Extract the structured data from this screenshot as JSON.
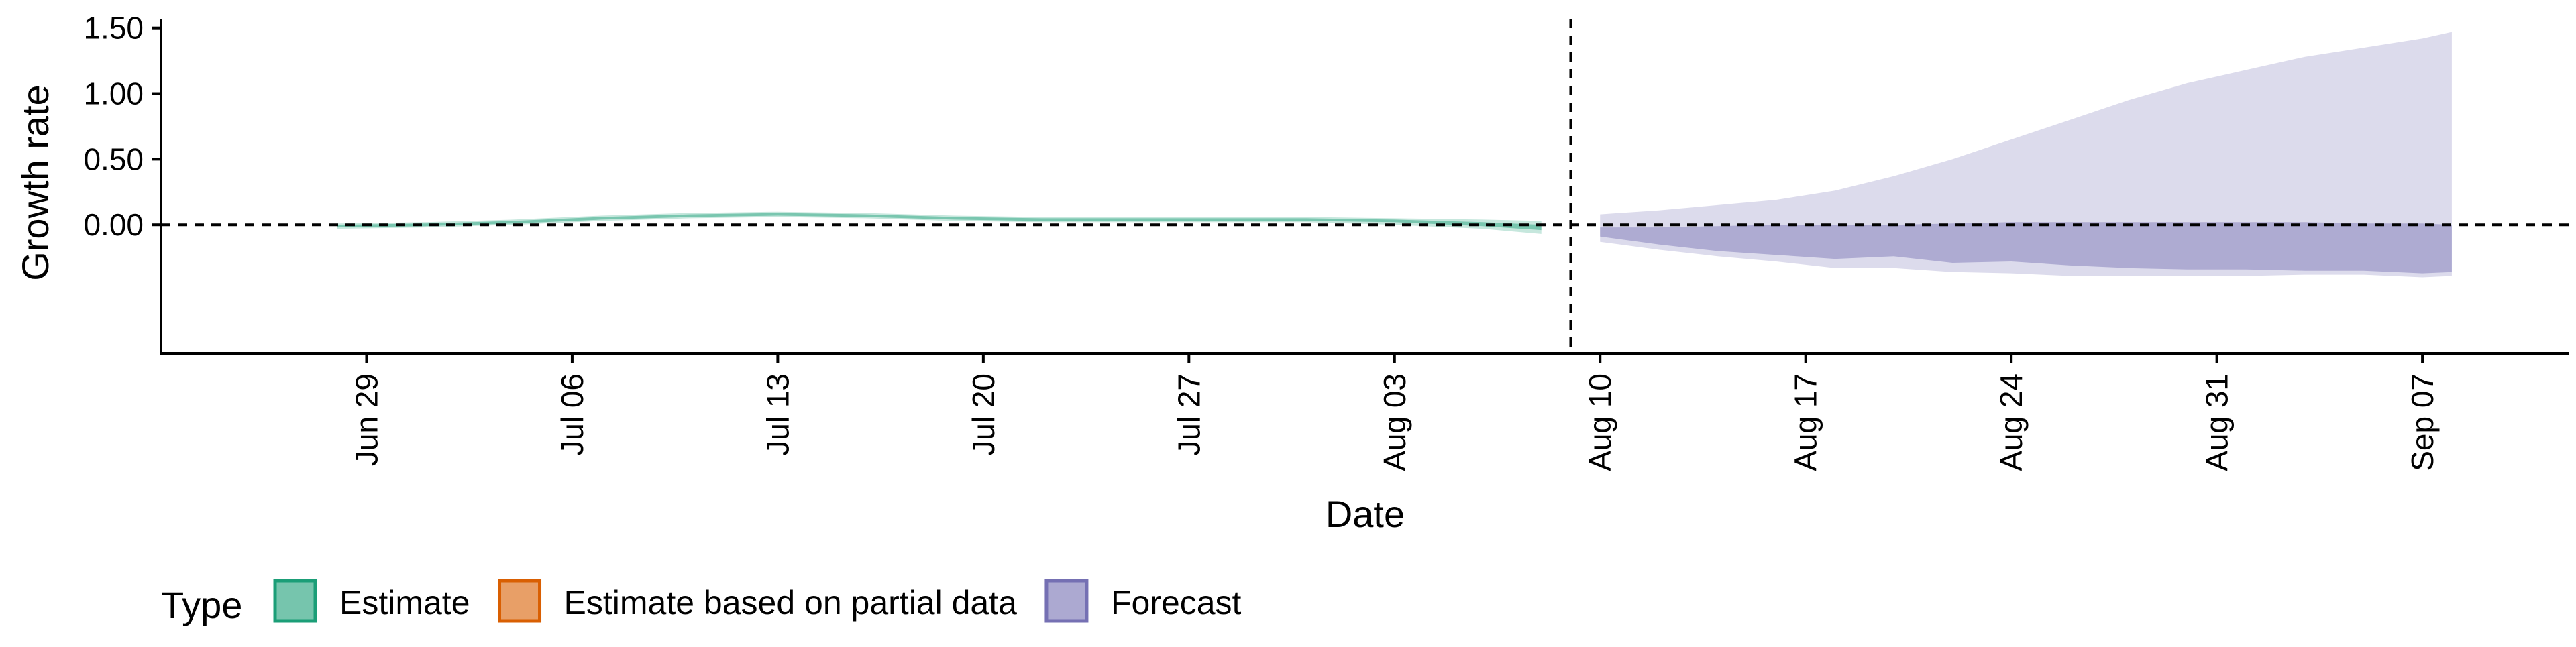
{
  "chart_data": {
    "type": "area",
    "xlabel": "Date",
    "ylabel": "Growth rate",
    "x_axis": {
      "type": "date",
      "range": [
        "2020-06-22",
        "2020-09-12"
      ],
      "ticks": [
        "2020-06-29",
        "2020-07-06",
        "2020-07-13",
        "2020-07-20",
        "2020-07-27",
        "2020-08-03",
        "2020-08-10",
        "2020-08-17",
        "2020-08-24",
        "2020-08-31",
        "2020-09-07"
      ],
      "tick_labels": [
        "Jun 29",
        "Jul 06",
        "Jul 13",
        "Jul 20",
        "Jul 27",
        "Aug 03",
        "Aug 10",
        "Aug 17",
        "Aug 24",
        "Aug 31",
        "Sep 07"
      ]
    },
    "y_axis": {
      "range": [
        -0.98,
        1.57
      ],
      "ticks": [
        0,
        0.5,
        1,
        1.5
      ],
      "tick_labels": [
        "0.00",
        "0.50",
        "1.00",
        "1.50"
      ]
    },
    "grid": false,
    "reference_lines": {
      "horizontal_y": 0,
      "vertical_x": "2020-08-09"
    },
    "legend": {
      "title": "Type",
      "position": "bottom-left",
      "items": [
        {
          "label": "Estimate",
          "color": "#1b9e77"
        },
        {
          "label": "Estimate based on partial data",
          "color": "#d95f02"
        },
        {
          "label": "Forecast",
          "color": "#7570b3"
        }
      ]
    },
    "series": [
      {
        "name": "Estimate",
        "color": "#1b9e77",
        "x": [
          "2020-06-28",
          "2020-07-01",
          "2020-07-04",
          "2020-07-07",
          "2020-07-10",
          "2020-07-13",
          "2020-07-16",
          "2020-07-19",
          "2020-07-22",
          "2020-07-25",
          "2020-07-28",
          "2020-07-31",
          "2020-08-03",
          "2020-08-06",
          "2020-08-08"
        ],
        "inner_lower": [
          -0.02,
          -0.01,
          0.01,
          0.04,
          0.06,
          0.07,
          0.06,
          0.04,
          0.03,
          0.03,
          0.03,
          0.03,
          0.02,
          -0.01,
          -0.04
        ],
        "inner_upper": [
          0.0,
          0.01,
          0.03,
          0.06,
          0.08,
          0.09,
          0.08,
          0.06,
          0.05,
          0.05,
          0.05,
          0.05,
          0.04,
          0.02,
          0.0
        ],
        "outer_lower": [
          -0.03,
          -0.02,
          0.0,
          0.03,
          0.05,
          0.06,
          0.05,
          0.03,
          0.02,
          0.02,
          0.02,
          0.02,
          0.0,
          -0.03,
          -0.07
        ],
        "outer_upper": [
          0.01,
          0.02,
          0.04,
          0.07,
          0.09,
          0.1,
          0.09,
          0.07,
          0.06,
          0.06,
          0.06,
          0.06,
          0.05,
          0.04,
          0.03
        ]
      },
      {
        "name": "Forecast",
        "color": "#7570b3",
        "x": [
          "2020-08-10",
          "2020-08-12",
          "2020-08-14",
          "2020-08-16",
          "2020-08-18",
          "2020-08-20",
          "2020-08-22",
          "2020-08-24",
          "2020-08-26",
          "2020-08-28",
          "2020-08-30",
          "2020-09-01",
          "2020-09-03",
          "2020-09-05",
          "2020-09-07",
          "2020-09-08"
        ],
        "inner_lower": [
          -0.09,
          -0.15,
          -0.2,
          -0.23,
          -0.26,
          -0.24,
          -0.29,
          -0.28,
          -0.31,
          -0.33,
          -0.34,
          -0.34,
          -0.35,
          -0.35,
          -0.37,
          -0.36
        ],
        "inner_upper": [
          -0.02,
          -0.02,
          -0.01,
          0.0,
          0.0,
          0.0,
          0.01,
          0.02,
          0.02,
          0.02,
          0.02,
          0.02,
          0.02,
          0.01,
          0.01,
          0.0
        ],
        "outer_lower": [
          -0.13,
          -0.19,
          -0.24,
          -0.28,
          -0.33,
          -0.33,
          -0.36,
          -0.37,
          -0.39,
          -0.39,
          -0.39,
          -0.39,
          -0.38,
          -0.38,
          -0.4,
          -0.39
        ],
        "outer_upper": [
          0.08,
          0.11,
          0.15,
          0.19,
          0.26,
          0.37,
          0.5,
          0.65,
          0.8,
          0.95,
          1.08,
          1.18,
          1.28,
          1.35,
          1.42,
          1.47
        ]
      }
    ]
  }
}
